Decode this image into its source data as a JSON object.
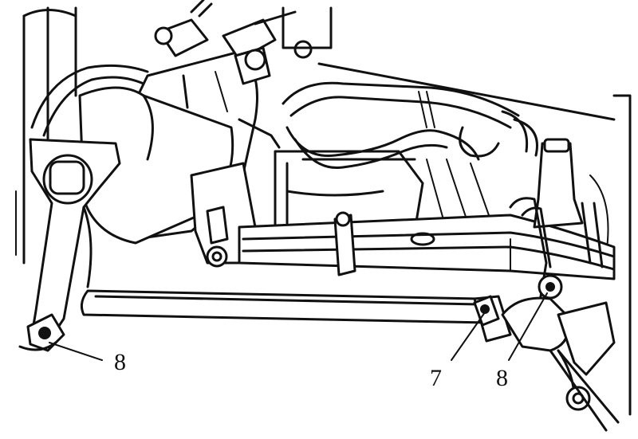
{
  "figure": {
    "callouts": [
      {
        "id": "callout-8-left",
        "label": "8"
      },
      {
        "id": "callout-7",
        "label": "7"
      },
      {
        "id": "callout-8-right",
        "label": "8"
      }
    ],
    "colors": {
      "ink": "#111111",
      "paper": "#ffffff"
    }
  }
}
